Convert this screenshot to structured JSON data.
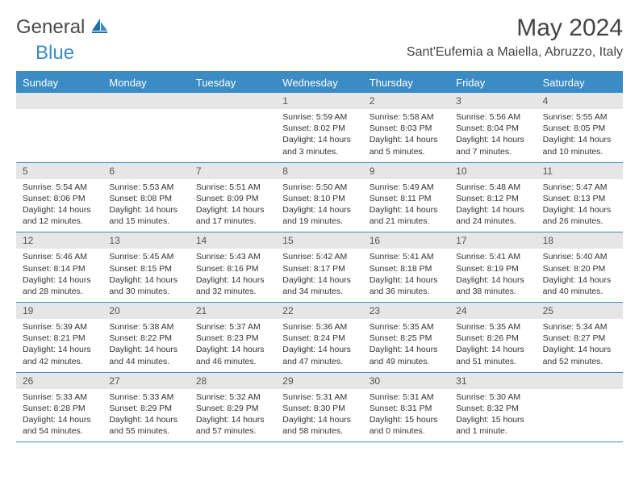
{
  "logo": {
    "text1": "General",
    "text2": "Blue"
  },
  "header": {
    "month_title": "May 2024",
    "location": "Sant'Eufemia a Maiella, Abruzzo, Italy"
  },
  "colors": {
    "accent": "#3b8bc4",
    "header_bg": "#3b8bc4",
    "header_text": "#ffffff",
    "daynum_bg": "#e6e6e6",
    "text": "#333333",
    "background": "#ffffff"
  },
  "day_names": [
    "Sunday",
    "Monday",
    "Tuesday",
    "Wednesday",
    "Thursday",
    "Friday",
    "Saturday"
  ],
  "weeks": [
    [
      {
        "n": "",
        "sr": "",
        "ss": "",
        "dl": ""
      },
      {
        "n": "",
        "sr": "",
        "ss": "",
        "dl": ""
      },
      {
        "n": "",
        "sr": "",
        "ss": "",
        "dl": ""
      },
      {
        "n": "1",
        "sr": "Sunrise: 5:59 AM",
        "ss": "Sunset: 8:02 PM",
        "dl": "Daylight: 14 hours and 3 minutes."
      },
      {
        "n": "2",
        "sr": "Sunrise: 5:58 AM",
        "ss": "Sunset: 8:03 PM",
        "dl": "Daylight: 14 hours and 5 minutes."
      },
      {
        "n": "3",
        "sr": "Sunrise: 5:56 AM",
        "ss": "Sunset: 8:04 PM",
        "dl": "Daylight: 14 hours and 7 minutes."
      },
      {
        "n": "4",
        "sr": "Sunrise: 5:55 AM",
        "ss": "Sunset: 8:05 PM",
        "dl": "Daylight: 14 hours and 10 minutes."
      }
    ],
    [
      {
        "n": "5",
        "sr": "Sunrise: 5:54 AM",
        "ss": "Sunset: 8:06 PM",
        "dl": "Daylight: 14 hours and 12 minutes."
      },
      {
        "n": "6",
        "sr": "Sunrise: 5:53 AM",
        "ss": "Sunset: 8:08 PM",
        "dl": "Daylight: 14 hours and 15 minutes."
      },
      {
        "n": "7",
        "sr": "Sunrise: 5:51 AM",
        "ss": "Sunset: 8:09 PM",
        "dl": "Daylight: 14 hours and 17 minutes."
      },
      {
        "n": "8",
        "sr": "Sunrise: 5:50 AM",
        "ss": "Sunset: 8:10 PM",
        "dl": "Daylight: 14 hours and 19 minutes."
      },
      {
        "n": "9",
        "sr": "Sunrise: 5:49 AM",
        "ss": "Sunset: 8:11 PM",
        "dl": "Daylight: 14 hours and 21 minutes."
      },
      {
        "n": "10",
        "sr": "Sunrise: 5:48 AM",
        "ss": "Sunset: 8:12 PM",
        "dl": "Daylight: 14 hours and 24 minutes."
      },
      {
        "n": "11",
        "sr": "Sunrise: 5:47 AM",
        "ss": "Sunset: 8:13 PM",
        "dl": "Daylight: 14 hours and 26 minutes."
      }
    ],
    [
      {
        "n": "12",
        "sr": "Sunrise: 5:46 AM",
        "ss": "Sunset: 8:14 PM",
        "dl": "Daylight: 14 hours and 28 minutes."
      },
      {
        "n": "13",
        "sr": "Sunrise: 5:45 AM",
        "ss": "Sunset: 8:15 PM",
        "dl": "Daylight: 14 hours and 30 minutes."
      },
      {
        "n": "14",
        "sr": "Sunrise: 5:43 AM",
        "ss": "Sunset: 8:16 PM",
        "dl": "Daylight: 14 hours and 32 minutes."
      },
      {
        "n": "15",
        "sr": "Sunrise: 5:42 AM",
        "ss": "Sunset: 8:17 PM",
        "dl": "Daylight: 14 hours and 34 minutes."
      },
      {
        "n": "16",
        "sr": "Sunrise: 5:41 AM",
        "ss": "Sunset: 8:18 PM",
        "dl": "Daylight: 14 hours and 36 minutes."
      },
      {
        "n": "17",
        "sr": "Sunrise: 5:41 AM",
        "ss": "Sunset: 8:19 PM",
        "dl": "Daylight: 14 hours and 38 minutes."
      },
      {
        "n": "18",
        "sr": "Sunrise: 5:40 AM",
        "ss": "Sunset: 8:20 PM",
        "dl": "Daylight: 14 hours and 40 minutes."
      }
    ],
    [
      {
        "n": "19",
        "sr": "Sunrise: 5:39 AM",
        "ss": "Sunset: 8:21 PM",
        "dl": "Daylight: 14 hours and 42 minutes."
      },
      {
        "n": "20",
        "sr": "Sunrise: 5:38 AM",
        "ss": "Sunset: 8:22 PM",
        "dl": "Daylight: 14 hours and 44 minutes."
      },
      {
        "n": "21",
        "sr": "Sunrise: 5:37 AM",
        "ss": "Sunset: 8:23 PM",
        "dl": "Daylight: 14 hours and 46 minutes."
      },
      {
        "n": "22",
        "sr": "Sunrise: 5:36 AM",
        "ss": "Sunset: 8:24 PM",
        "dl": "Daylight: 14 hours and 47 minutes."
      },
      {
        "n": "23",
        "sr": "Sunrise: 5:35 AM",
        "ss": "Sunset: 8:25 PM",
        "dl": "Daylight: 14 hours and 49 minutes."
      },
      {
        "n": "24",
        "sr": "Sunrise: 5:35 AM",
        "ss": "Sunset: 8:26 PM",
        "dl": "Daylight: 14 hours and 51 minutes."
      },
      {
        "n": "25",
        "sr": "Sunrise: 5:34 AM",
        "ss": "Sunset: 8:27 PM",
        "dl": "Daylight: 14 hours and 52 minutes."
      }
    ],
    [
      {
        "n": "26",
        "sr": "Sunrise: 5:33 AM",
        "ss": "Sunset: 8:28 PM",
        "dl": "Daylight: 14 hours and 54 minutes."
      },
      {
        "n": "27",
        "sr": "Sunrise: 5:33 AM",
        "ss": "Sunset: 8:29 PM",
        "dl": "Daylight: 14 hours and 55 minutes."
      },
      {
        "n": "28",
        "sr": "Sunrise: 5:32 AM",
        "ss": "Sunset: 8:29 PM",
        "dl": "Daylight: 14 hours and 57 minutes."
      },
      {
        "n": "29",
        "sr": "Sunrise: 5:31 AM",
        "ss": "Sunset: 8:30 PM",
        "dl": "Daylight: 14 hours and 58 minutes."
      },
      {
        "n": "30",
        "sr": "Sunrise: 5:31 AM",
        "ss": "Sunset: 8:31 PM",
        "dl": "Daylight: 15 hours and 0 minutes."
      },
      {
        "n": "31",
        "sr": "Sunrise: 5:30 AM",
        "ss": "Sunset: 8:32 PM",
        "dl": "Daylight: 15 hours and 1 minute."
      },
      {
        "n": "",
        "sr": "",
        "ss": "",
        "dl": ""
      }
    ]
  ]
}
